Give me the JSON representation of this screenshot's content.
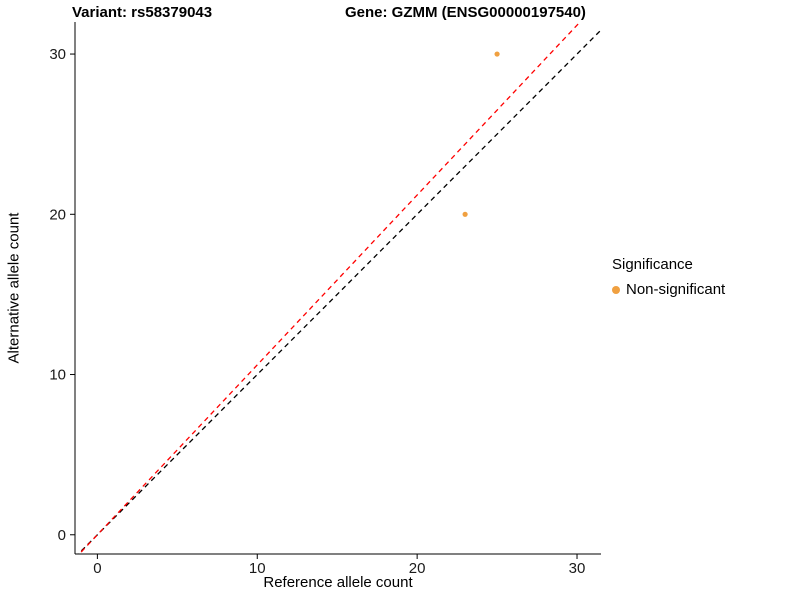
{
  "chart_data": {
    "type": "scatter",
    "title_left": "Variant: rs58379043",
    "title_right": "Gene: GZMM (ENSG00000197540)",
    "xlabel": "Reference allele count",
    "ylabel": "Alternative allele count",
    "xlim": [
      -1.4,
      31.5
    ],
    "ylim": [
      -1.2,
      32
    ],
    "xticks": [
      0,
      10,
      20,
      30
    ],
    "yticks": [
      0,
      10,
      20,
      30
    ],
    "grid": false,
    "points": [
      {
        "x": 25,
        "y": 30,
        "group": "Non-significant"
      },
      {
        "x": 23,
        "y": 20,
        "group": "Non-significant"
      }
    ],
    "point_color": "#F0A040",
    "point_radius": 2.6,
    "lines": [
      {
        "name": "identity-line",
        "slope": 1.0,
        "intercept": 0,
        "color": "#000000",
        "dashed": true
      },
      {
        "name": "fitted-ratio-line",
        "slope": 1.06,
        "intercept": 0,
        "color": "#FF0000",
        "dashed": true
      }
    ],
    "axis_color": "#000000",
    "tick_label_color": "#1a1a1a",
    "legend": {
      "title": "Significance",
      "position": "right",
      "items": [
        {
          "label": "Non-significant",
          "color": "#F0A040"
        }
      ]
    }
  }
}
